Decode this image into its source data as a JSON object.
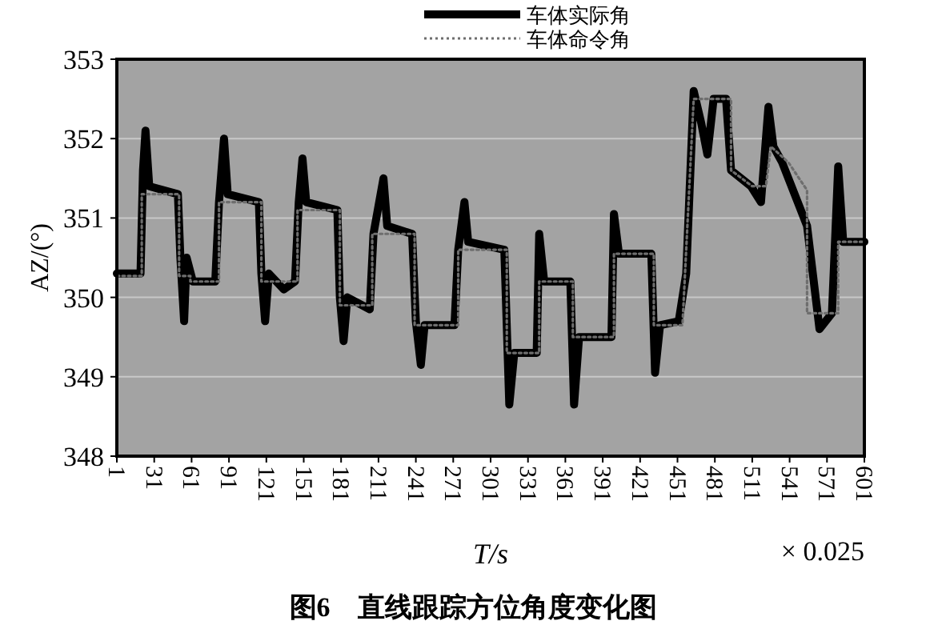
{
  "chart_data": {
    "type": "line",
    "title": "图6　直线跟踪方位角度变化图",
    "xlabel": "T/s",
    "ylabel": "AZ/(°)",
    "annotations": [
      "× 0.025"
    ],
    "xlim": [
      1,
      601
    ],
    "xticks": [
      1,
      31,
      61,
      91,
      121,
      151,
      181,
      211,
      241,
      271,
      301,
      331,
      361,
      391,
      421,
      451,
      481,
      511,
      541,
      571,
      601
    ],
    "ylim": [
      348,
      353
    ],
    "yticks": [
      348,
      349,
      350,
      351,
      352,
      353
    ],
    "grid": "y",
    "legend": "top",
    "series": [
      {
        "name": "车体实际角",
        "color": "#000000",
        "line_style": "solid",
        "x": [
          1,
          20,
          22,
          24,
          27,
          50,
          52,
          55,
          57,
          62,
          80,
          83,
          87,
          90,
          115,
          117,
          120,
          123,
          135,
          144,
          147,
          150,
          153,
          178,
          180,
          183,
          186,
          204,
          207,
          215,
          218,
          238,
          241,
          245,
          248,
          272,
          275,
          280,
          283,
          312,
          316,
          320,
          338,
          340,
          344,
          365,
          368,
          372,
          398,
          400,
          404,
          430,
          433,
          437,
          452,
          458,
          464,
          470,
          475,
          480,
          490,
          494,
          510,
          518,
          524,
          528,
          535,
          545,
          555,
          565,
          575,
          580,
          584,
          601
        ],
        "values": [
          350.3,
          350.3,
          351.6,
          352.1,
          351.4,
          351.3,
          350.5,
          349.7,
          350.5,
          350.2,
          350.2,
          351.2,
          352.0,
          351.3,
          351.2,
          350.3,
          349.7,
          350.3,
          350.1,
          350.2,
          351.2,
          351.75,
          351.2,
          351.1,
          350.0,
          349.45,
          350.0,
          349.85,
          350.8,
          351.5,
          350.9,
          350.8,
          349.7,
          349.15,
          349.65,
          349.65,
          350.6,
          351.2,
          350.7,
          350.6,
          348.65,
          349.3,
          349.3,
          350.8,
          350.2,
          350.2,
          348.65,
          349.5,
          349.5,
          351.05,
          350.55,
          350.55,
          349.05,
          349.65,
          349.7,
          350.3,
          352.6,
          352.2,
          351.8,
          352.5,
          352.5,
          351.6,
          351.4,
          351.2,
          352.4,
          351.9,
          351.7,
          351.3,
          350.9,
          349.6,
          349.8,
          351.65,
          350.7,
          350.7
        ]
      },
      {
        "name": "车体命令角",
        "color": "#6e6e6e",
        "line_style": "dotted",
        "x": [
          1,
          21,
          21,
          51,
          51,
          60,
          60,
          83,
          83,
          117,
          117,
          146,
          146,
          180,
          180,
          206,
          206,
          240,
          240,
          275,
          275,
          314,
          314,
          340,
          340,
          367,
          367,
          400,
          400,
          432,
          432,
          455,
          464,
          494,
          494,
          511,
          522,
          526,
          540,
          555,
          555,
          580,
          580,
          601
        ],
        "values": [
          350.27,
          350.27,
          351.3,
          351.3,
          350.27,
          350.27,
          350.2,
          350.2,
          351.2,
          351.2,
          350.2,
          350.2,
          351.1,
          351.1,
          349.9,
          349.9,
          350.8,
          350.8,
          349.65,
          349.65,
          350.6,
          350.6,
          349.3,
          349.3,
          350.2,
          350.2,
          349.5,
          349.5,
          350.55,
          350.55,
          349.65,
          349.65,
          352.5,
          352.5,
          351.6,
          351.4,
          351.4,
          351.9,
          351.7,
          351.35,
          349.8,
          349.8,
          350.7,
          350.7
        ]
      }
    ]
  }
}
